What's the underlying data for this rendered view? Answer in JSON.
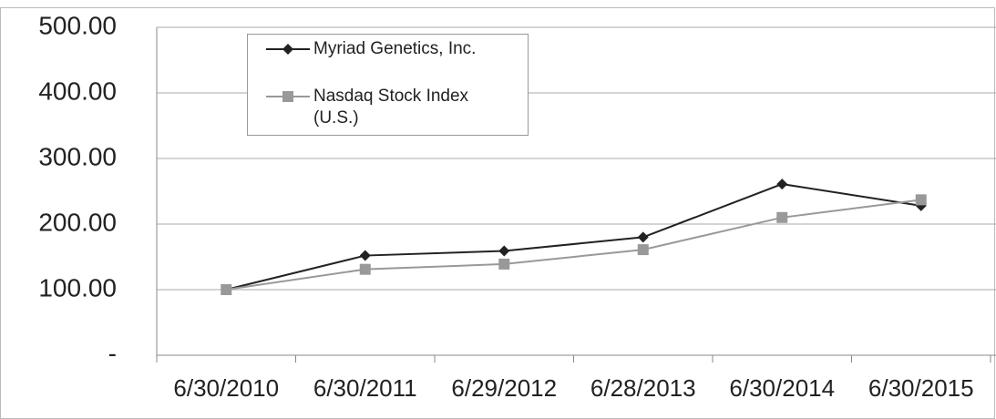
{
  "chart_data": {
    "type": "line",
    "categories": [
      "6/30/2010",
      "6/30/2011",
      "6/29/2012",
      "6/28/2013",
      "6/30/2014",
      "6/30/2015"
    ],
    "series": [
      {
        "name": "Myriad Genetics, Inc.",
        "color": "#222222",
        "marker": "diamond",
        "values": [
          100,
          152,
          159,
          180,
          261,
          228
        ]
      },
      {
        "name": "Nasdaq Stock Index (U.S.)",
        "color": "#999999",
        "marker": "square",
        "values": [
          100,
          131,
          139,
          161,
          210,
          237
        ]
      }
    ],
    "ylim": [
      0,
      500
    ],
    "yticks": [
      {
        "value": 0,
        "label": "-"
      },
      {
        "value": 100,
        "label": "100.00"
      },
      {
        "value": 200,
        "label": "200.00"
      },
      {
        "value": 300,
        "label": "300.00"
      },
      {
        "value": 400,
        "label": "400.00"
      },
      {
        "value": 500,
        "label": "500.00"
      }
    ],
    "grid": true,
    "legend": "top-left"
  }
}
